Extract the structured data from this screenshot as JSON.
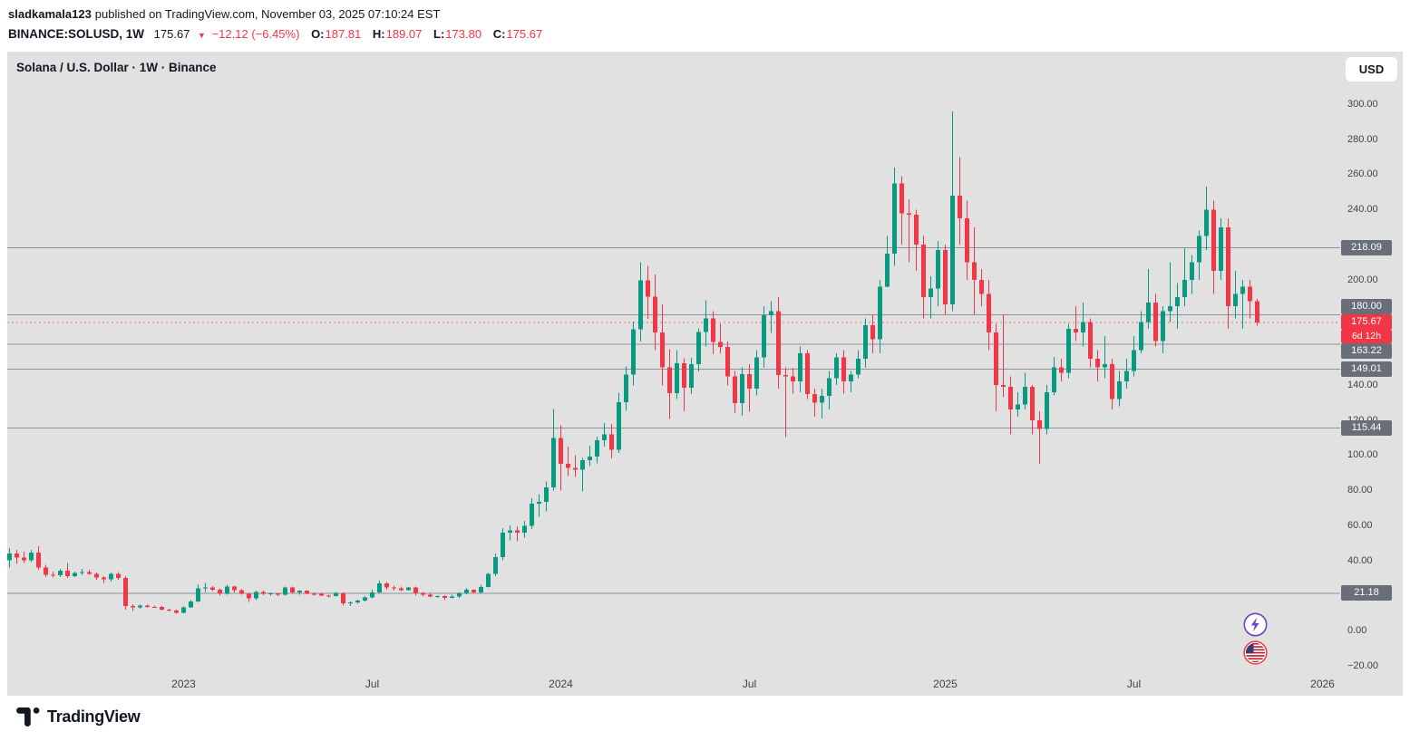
{
  "header": {
    "username": "sladkamala123",
    "published_text": "published on TradingView.com, November 03, 2025 07:10:24 EST",
    "symbol": "BINANCE:SOLUSD, 1W",
    "last_price": "175.67",
    "change_arrow": "▼",
    "change_text": "−12.12 (−6.45%)",
    "open_label": "O:",
    "open": "187.81",
    "high_label": "H:",
    "high": "189.07",
    "low_label": "L:",
    "low": "173.80",
    "close_label": "C:",
    "close": "175.67"
  },
  "chart": {
    "legend": "Solana / U.S. Dollar · 1W · Binance",
    "currency_label": "USD"
  },
  "price_scale": {
    "ticks": [
      {
        "label": "300.00",
        "value": 300
      },
      {
        "label": "280.00",
        "value": 280
      },
      {
        "label": "260.00",
        "value": 260
      },
      {
        "label": "240.00",
        "value": 240
      },
      {
        "label": "220.00",
        "value": 220
      },
      {
        "label": "200.00",
        "value": 200
      },
      {
        "label": "180.00",
        "value": 180
      },
      {
        "label": "160.00",
        "value": 160
      },
      {
        "label": "140.00",
        "value": 140
      },
      {
        "label": "120.00",
        "value": 120
      },
      {
        "label": "100.00",
        "value": 100
      },
      {
        "label": "80.00",
        "value": 80
      },
      {
        "label": "60.00",
        "value": 60
      },
      {
        "label": "40.00",
        "value": 40
      },
      {
        "label": "20.00",
        "value": 20
      },
      {
        "label": "0.00",
        "value": 0
      },
      {
        "label": "−20.00",
        "value": -20
      }
    ],
    "level_badges": [
      {
        "label": "218.09",
        "value": 218.09
      },
      {
        "label": "180.00",
        "value": 180
      },
      {
        "label": "163.22",
        "value": 163.22
      },
      {
        "label": "149.01",
        "value": 149.01
      },
      {
        "label": "115.44",
        "value": 115.44
      },
      {
        "label": "21.18",
        "value": 21.18
      }
    ],
    "current_badge": {
      "label": "175.67",
      "value": 175.67,
      "countdown": "6d 12h"
    }
  },
  "time_axis": {
    "ticks": [
      {
        "label": "2023",
        "week_index": 24
      },
      {
        "label": "Jul",
        "week_index": 50
      },
      {
        "label": "2024",
        "week_index": 76
      },
      {
        "label": "Jul",
        "week_index": 102
      },
      {
        "label": "2025",
        "week_index": 129
      },
      {
        "label": "Jul",
        "week_index": 155
      },
      {
        "label": "2026",
        "week_index": 181
      }
    ]
  },
  "icons": {
    "boost": "lightning-icon",
    "flag": "us-flag-icon"
  },
  "footer": {
    "brand": "TradingView"
  },
  "colors": {
    "up": "#089981",
    "down": "#f23645",
    "badge_bg": "#6a6e79",
    "level_line": "#8e9199",
    "chart_bg": "#e1e1e1",
    "text_dark": "#131722"
  },
  "chart_data": {
    "type": "candlestick",
    "title": "Solana / U.S. Dollar · 1W · Binance",
    "symbol": "BINANCE:SOLUSD",
    "interval": "1W",
    "currency": "USD",
    "first_week": "2022-07-18",
    "last_week": "2025-11-03",
    "y_range": [
      -20,
      310
    ],
    "horizontal_levels": [
      218.09,
      180,
      163.22,
      149.01,
      115.44,
      21.18
    ],
    "current": {
      "price": 175.67,
      "countdown": "6d 12h"
    },
    "last_candle_readout": {
      "o": 187.81,
      "h": 189.07,
      "l": 173.8,
      "c": 175.67
    },
    "ohlc": [
      [
        40,
        47,
        36,
        44
      ],
      [
        44,
        46,
        38,
        41.5
      ],
      [
        41.5,
        45,
        38.5,
        40
      ],
      [
        40,
        46,
        39,
        44.5
      ],
      [
        44.5,
        48,
        34.5,
        36
      ],
      [
        36,
        37.5,
        30.5,
        31.8
      ],
      [
        31.8,
        33.5,
        30.2,
        31.5
      ],
      [
        31.5,
        35,
        30.5,
        34
      ],
      [
        34,
        38.5,
        30,
        31
      ],
      [
        31,
        33.5,
        30.5,
        32.8
      ],
      [
        32.8,
        35.2,
        31.5,
        33.4
      ],
      [
        33.4,
        34.6,
        31.8,
        32.4
      ],
      [
        32.4,
        33,
        29,
        30.3
      ],
      [
        30.3,
        31,
        27,
        29.2
      ],
      [
        29.2,
        33,
        28,
        32.4
      ],
      [
        32.4,
        33.2,
        28.8,
        30
      ],
      [
        30,
        31,
        11.9,
        14
      ],
      [
        14,
        15,
        11,
        13.2
      ],
      [
        13.2,
        14.6,
        12.4,
        14.1
      ],
      [
        14.1,
        14.6,
        12.9,
        13.5
      ],
      [
        13.5,
        14.1,
        12.9,
        13.3
      ],
      [
        13.3,
        13.9,
        11.4,
        11.9
      ],
      [
        11.9,
        12.4,
        10.9,
        11.4
      ],
      [
        11.4,
        11.8,
        9.6,
        10
      ],
      [
        10,
        13.6,
        9.8,
        13.1
      ],
      [
        13.1,
        17.3,
        12.8,
        16.6
      ],
      [
        16.6,
        26.3,
        16.2,
        24.1
      ],
      [
        24.1,
        27.1,
        21.9,
        24.5
      ],
      [
        24.5,
        25.2,
        22.4,
        23.3
      ],
      [
        23.3,
        24,
        19.8,
        21
      ],
      [
        21,
        26,
        20.3,
        25
      ],
      [
        25,
        25.6,
        21.8,
        23.1
      ],
      [
        23.1,
        23.6,
        20.4,
        20.9
      ],
      [
        20.9,
        21.4,
        16.2,
        18.4
      ],
      [
        18.4,
        22.6,
        17.4,
        22
      ],
      [
        22,
        22.7,
        20.2,
        20.9
      ],
      [
        20.9,
        21.6,
        19.9,
        21.2
      ],
      [
        21.2,
        21.5,
        19.6,
        20.4
      ],
      [
        20.4,
        25,
        19.9,
        24.6
      ],
      [
        24.6,
        25.1,
        21,
        21.7
      ],
      [
        21.7,
        23.1,
        20.3,
        22.6
      ],
      [
        22.6,
        23,
        20.6,
        21
      ],
      [
        21,
        21.6,
        19.9,
        20.9
      ],
      [
        20.9,
        21.3,
        19.5,
        19.9
      ],
      [
        19.9,
        20.4,
        18.9,
        19.6
      ],
      [
        19.6,
        21.9,
        19.4,
        21.4
      ],
      [
        21.4,
        21.6,
        14.3,
        15.4
      ],
      [
        15.4,
        16.6,
        13.9,
        15.9
      ],
      [
        15.9,
        17.6,
        15.3,
        17
      ],
      [
        17,
        19.6,
        16.4,
        18.9
      ],
      [
        18.9,
        23.2,
        18.4,
        21.6
      ],
      [
        21.6,
        28.3,
        21.2,
        26.9
      ],
      [
        26.9,
        27.6,
        23.3,
        24.4
      ],
      [
        24.4,
        25.6,
        22.8,
        23.9
      ],
      [
        23.9,
        25,
        22.4,
        23
      ],
      [
        23,
        24.9,
        22.6,
        24.4
      ],
      [
        24.4,
        25.1,
        19.9,
        21.3
      ],
      [
        21.3,
        22,
        19.4,
        20.4
      ],
      [
        20.4,
        21.4,
        18.9,
        19.4
      ],
      [
        19.4,
        20,
        18.6,
        19.7
      ],
      [
        19.7,
        20.1,
        17.3,
        18.7
      ],
      [
        18.7,
        20.4,
        18.3,
        19.4
      ],
      [
        19.4,
        21.6,
        18.7,
        21.3
      ],
      [
        21.3,
        24.2,
        20.7,
        23.3
      ],
      [
        23.3,
        23.6,
        20.9,
        21.7
      ],
      [
        21.7,
        26,
        21,
        24.9
      ],
      [
        24.9,
        32.9,
        24.4,
        32.2
      ],
      [
        32.2,
        43.9,
        31,
        41.8
      ],
      [
        41.8,
        58.3,
        40.1,
        55.8
      ],
      [
        55.8,
        60,
        51.5,
        57
      ],
      [
        57,
        59.4,
        50.8,
        55.8
      ],
      [
        55.8,
        62.5,
        53,
        59.7
      ],
      [
        59.7,
        75.4,
        57.9,
        72.3
      ],
      [
        72.3,
        77.7,
        64.7,
        73.2
      ],
      [
        73.2,
        85,
        67.9,
        81.7
      ],
      [
        81.7,
        126.2,
        79.9,
        109.8
      ],
      [
        109.8,
        117,
        79.8,
        94.9
      ],
      [
        94.9,
        104.7,
        88,
        92.6
      ],
      [
        92.6,
        99.8,
        87.5,
        91.7
      ],
      [
        91.7,
        98.4,
        79.2,
        97.1
      ],
      [
        97.1,
        105.3,
        93.8,
        99.2
      ],
      [
        99.2,
        110.5,
        95.3,
        108.4
      ],
      [
        108.4,
        118.3,
        104.8,
        111.9
      ],
      [
        111.9,
        117.8,
        98.2,
        103.1
      ],
      [
        103.1,
        135.5,
        101.2,
        130.2
      ],
      [
        130.2,
        150.4,
        125.3,
        145.8
      ],
      [
        145.8,
        176,
        139.6,
        171.6
      ],
      [
        171.6,
        209.9,
        164.8,
        199.5
      ],
      [
        199.5,
        207.7,
        177.6,
        190.3
      ],
      [
        190.3,
        202.9,
        159.7,
        169.9
      ],
      [
        169.9,
        185.8,
        139.7,
        150.1
      ],
      [
        150.1,
        160.3,
        120.6,
        135.2
      ],
      [
        135.2,
        159.9,
        131.8,
        152.3
      ],
      [
        152.3,
        155.2,
        124.9,
        138.4
      ],
      [
        138.4,
        155.5,
        134.7,
        151.8
      ],
      [
        151.8,
        172.3,
        147.7,
        170.1
      ],
      [
        170.1,
        188.2,
        161.9,
        177.8
      ],
      [
        177.8,
        181.9,
        157.6,
        164.5
      ],
      [
        164.5,
        174.8,
        157.9,
        161.7
      ],
      [
        161.7,
        164.8,
        139.6,
        144.8
      ],
      [
        144.8,
        147.9,
        123.8,
        129.6
      ],
      [
        129.6,
        149.9,
        122.3,
        146
      ],
      [
        146,
        151.7,
        124.6,
        137.8
      ],
      [
        137.8,
        159.8,
        133.9,
        155.6
      ],
      [
        155.6,
        184.9,
        149.8,
        179.8
      ],
      [
        179.8,
        187.8,
        169.7,
        181.9
      ],
      [
        181.9,
        189.9,
        137.8,
        145.7
      ],
      [
        145.7,
        149.9,
        110.2,
        144.8
      ],
      [
        144.8,
        149.8,
        134.9,
        141.9
      ],
      [
        141.9,
        161.8,
        135.8,
        158.1
      ],
      [
        158.1,
        159.9,
        131.9,
        134.8
      ],
      [
        134.8,
        137.9,
        121.8,
        129.8
      ],
      [
        129.8,
        137.8,
        120.9,
        133.8
      ],
      [
        133.8,
        147.9,
        125.9,
        143.9
      ],
      [
        143.9,
        157.9,
        139.8,
        155.8
      ],
      [
        155.8,
        159.9,
        134.9,
        141.9
      ],
      [
        141.9,
        147.9,
        135.9,
        145.9
      ],
      [
        145.9,
        159.8,
        143.8,
        154.9
      ],
      [
        154.9,
        177.8,
        149.8,
        173.9
      ],
      [
        173.9,
        179.9,
        157.9,
        165.9
      ],
      [
        165.9,
        199.9,
        157.9,
        195.9
      ],
      [
        195.9,
        224.9,
        195.8,
        214.9
      ],
      [
        214.9,
        263.8,
        207.9,
        254.9
      ],
      [
        254.9,
        258.9,
        219.9,
        237.9
      ],
      [
        237.9,
        245.9,
        209.9,
        236.9
      ],
      [
        236.9,
        239.9,
        204.9,
        219.9
      ],
      [
        219.9,
        224.9,
        177.9,
        189.9
      ],
      [
        189.9,
        201.9,
        177.9,
        194.9
      ],
      [
        194.9,
        221.9,
        184.9,
        216.9
      ],
      [
        216.9,
        219.9,
        179.9,
        185.9
      ],
      [
        185.9,
        295.8,
        181.9,
        247.9
      ],
      [
        247.9,
        269.9,
        219.9,
        234.9
      ],
      [
        234.9,
        244.9,
        199.9,
        209.9
      ],
      [
        209.9,
        229.9,
        179.9,
        199.9
      ],
      [
        199.9,
        205.9,
        184.9,
        191.9
      ],
      [
        191.9,
        199.9,
        159.9,
        169.9
      ],
      [
        169.9,
        174.9,
        124.9,
        139.9
      ],
      [
        139.9,
        179.9,
        132.9,
        138.9
      ],
      [
        138.9,
        144.9,
        111.9,
        125.9
      ],
      [
        125.9,
        135.9,
        121.9,
        128.9
      ],
      [
        128.9,
        146.9,
        125.9,
        138.9
      ],
      [
        138.9,
        139.9,
        111.9,
        119.9
      ],
      [
        119.9,
        124.9,
        94.9,
        114.9
      ],
      [
        114.9,
        139.9,
        111.9,
        135.9
      ],
      [
        135.9,
        155.9,
        133.9,
        149.9
      ],
      [
        149.9,
        154.9,
        141.9,
        146.9
      ],
      [
        146.9,
        174.9,
        143.9,
        171.9
      ],
      [
        171.9,
        184.9,
        164.9,
        169.9
      ],
      [
        169.9,
        186.9,
        161.9,
        175.9
      ],
      [
        175.9,
        177.9,
        149.9,
        154.9
      ],
      [
        154.9,
        159.9,
        141.9,
        149.9
      ],
      [
        149.9,
        167.9,
        143.9,
        151.9
      ],
      [
        151.9,
        154.9,
        125.9,
        131.9
      ],
      [
        131.9,
        147.9,
        127.9,
        141.9
      ],
      [
        141.9,
        154.9,
        137.9,
        147.9
      ],
      [
        147.9,
        167.9,
        144.9,
        159.9
      ],
      [
        159.9,
        181.9,
        157.9,
        175.9
      ],
      [
        175.9,
        205.9,
        171.9,
        186.9
      ],
      [
        186.9,
        191.9,
        161.9,
        164.9
      ],
      [
        164.9,
        184.9,
        157.9,
        181.9
      ],
      [
        181.9,
        209.9,
        175.9,
        184.9
      ],
      [
        184.9,
        197.9,
        171.9,
        189.9
      ],
      [
        189.9,
        217.9,
        184.9,
        199.9
      ],
      [
        199.9,
        213.9,
        191.9,
        209.9
      ],
      [
        209.9,
        227.9,
        199.9,
        224.9
      ],
      [
        224.9,
        252.9,
        216.9,
        239.9
      ],
      [
        239.9,
        244.9,
        191.9,
        204.9
      ],
      [
        204.9,
        234.9,
        199.9,
        229.9
      ],
      [
        229.9,
        234.9,
        171.9,
        184.9
      ],
      [
        184.9,
        204.9,
        177.9,
        191.9
      ],
      [
        191.9,
        199.9,
        171.9,
        195.9
      ],
      [
        195.9,
        199.9,
        177.9,
        187.8
      ],
      [
        187.81,
        189.07,
        173.8,
        175.67
      ]
    ]
  }
}
